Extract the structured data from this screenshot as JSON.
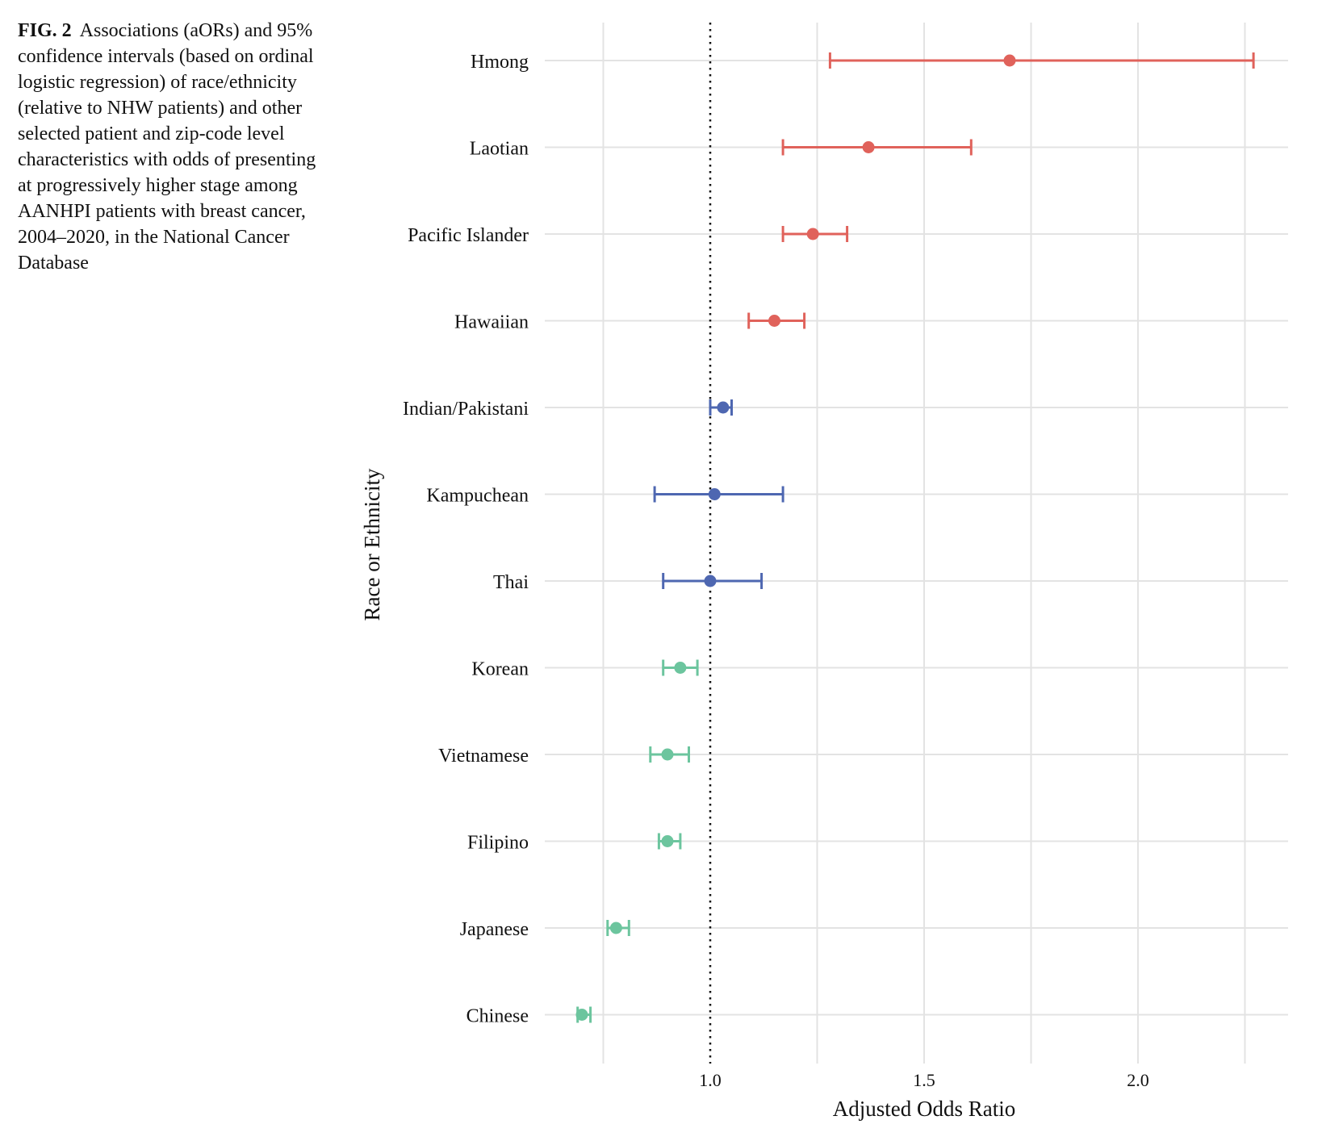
{
  "caption": {
    "label": "FIG. 2",
    "text": "Associations (aORs) and 95% confidence intervals (based on ordinal logistic regression) of race/ethnicity (relative to NHW patients) and other selected patient and zip-code level characteristics with odds of presenting at progressively higher stage among AANHPI patients with breast cancer, 2004–2020, in the National Cancer Database"
  },
  "colors": {
    "high": "#E0625B",
    "mid": "#4E67B1",
    "low": "#6CC59E",
    "grid": "#E3E3E3",
    "reference": "#111111"
  },
  "chart_data": {
    "type": "scatter",
    "subtype": "forest-plot",
    "xlabel": "Adjusted Odds Ratio",
    "ylabel": "Race or Ethnicity",
    "xlim": [
      0.6,
      2.35
    ],
    "xticks": [
      1.0,
      1.5,
      2.0
    ],
    "xtick_labels": [
      "1.0",
      "1.5",
      "2.0"
    ],
    "minor_gridlines": [
      0.75,
      1.25,
      1.75,
      2.25
    ],
    "reference_line": 1.0,
    "grid": true,
    "legend": "none",
    "rows": [
      {
        "label": "Hmong",
        "or": 1.7,
        "lo": 1.28,
        "hi": 2.27,
        "group": "high"
      },
      {
        "label": "Laotian",
        "or": 1.37,
        "lo": 1.17,
        "hi": 1.61,
        "group": "high"
      },
      {
        "label": "Pacific Islander",
        "or": 1.24,
        "lo": 1.17,
        "hi": 1.32,
        "group": "high"
      },
      {
        "label": "Hawaiian",
        "or": 1.15,
        "lo": 1.09,
        "hi": 1.22,
        "group": "high"
      },
      {
        "label": "Indian/Pakistani",
        "or": 1.03,
        "lo": 1.0,
        "hi": 1.05,
        "group": "mid"
      },
      {
        "label": "Kampuchean",
        "or": 1.01,
        "lo": 0.87,
        "hi": 1.17,
        "group": "mid"
      },
      {
        "label": "Thai",
        "or": 1.0,
        "lo": 0.89,
        "hi": 1.12,
        "group": "mid"
      },
      {
        "label": "Korean",
        "or": 0.93,
        "lo": 0.89,
        "hi": 0.97,
        "group": "low"
      },
      {
        "label": "Vietnamese",
        "or": 0.9,
        "lo": 0.86,
        "hi": 0.95,
        "group": "low"
      },
      {
        "label": "Filipino",
        "or": 0.9,
        "lo": 0.88,
        "hi": 0.93,
        "group": "low"
      },
      {
        "label": "Japanese",
        "or": 0.78,
        "lo": 0.76,
        "hi": 0.81,
        "group": "low"
      },
      {
        "label": "Chinese",
        "or": 0.7,
        "lo": 0.69,
        "hi": 0.72,
        "group": "low"
      }
    ]
  }
}
